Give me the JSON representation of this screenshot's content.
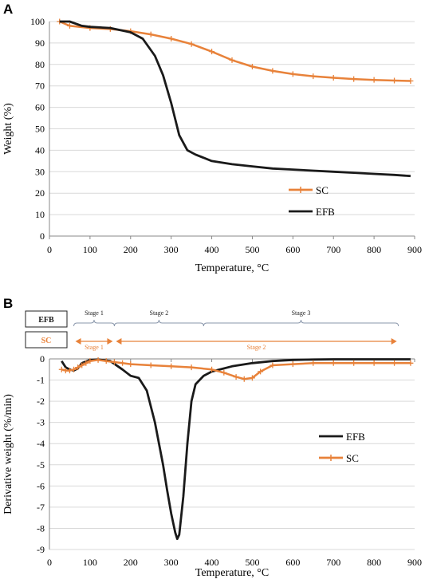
{
  "colors": {
    "SC": "#E8823A",
    "EFB": "#1a1a1a",
    "grid": "#d9d9d9",
    "bracket": "#8a97ab"
  },
  "chart_data": [
    {
      "panel": "A",
      "type": "line",
      "xlabel": "Temperature, °C",
      "ylabel": "Weight (%)",
      "xlim": [
        0,
        900
      ],
      "ylim": [
        0,
        100
      ],
      "xticks": [
        "0",
        "100",
        "200",
        "300",
        "400",
        "500",
        "600",
        "700",
        "800",
        "900"
      ],
      "yticks": [
        "0",
        "10",
        "20",
        "30",
        "40",
        "50",
        "60",
        "70",
        "80",
        "90",
        "100"
      ],
      "grid": "horizontal",
      "legend_position": "center-right",
      "series": [
        {
          "name": "SC",
          "marker": "plus",
          "x": [
            25,
            50,
            100,
            150,
            200,
            250,
            300,
            350,
            400,
            450,
            500,
            550,
            600,
            650,
            700,
            750,
            800,
            850,
            890
          ],
          "y": [
            100,
            98,
            97,
            96.5,
            95.5,
            94,
            92,
            89.5,
            86,
            82,
            79,
            77,
            75.5,
            74.5,
            73.8,
            73.2,
            72.8,
            72.5,
            72.3
          ]
        },
        {
          "name": "EFB",
          "marker": "none",
          "x": [
            25,
            50,
            80,
            100,
            150,
            200,
            230,
            260,
            280,
            300,
            320,
            340,
            360,
            400,
            450,
            500,
            550,
            600,
            650,
            700,
            750,
            800,
            850,
            890
          ],
          "y": [
            100,
            100,
            98,
            97.5,
            97,
            95,
            92,
            84,
            75,
            62,
            47,
            40,
            38,
            35,
            33.5,
            32.5,
            31.5,
            31,
            30.5,
            30,
            29.5,
            29,
            28.5,
            28
          ]
        }
      ]
    },
    {
      "panel": "B",
      "type": "line",
      "xlabel": "Temperature, °C",
      "ylabel": "Derivative weight (%/min)",
      "xlim": [
        0,
        900
      ],
      "ylim": [
        -9,
        0
      ],
      "xticks": [
        "0",
        "100",
        "200",
        "300",
        "400",
        "500",
        "600",
        "700",
        "800",
        "900"
      ],
      "yticks": [
        "0",
        "-1",
        "-2",
        "-3",
        "-4",
        "-5",
        "-6",
        "-7",
        "-8",
        "-9"
      ],
      "grid": "horizontal",
      "legend_position": "center-right",
      "series": [
        {
          "name": "EFB",
          "marker": "none",
          "x": [
            30,
            40,
            50,
            60,
            70,
            80,
            100,
            120,
            150,
            180,
            200,
            220,
            240,
            260,
            280,
            290,
            300,
            310,
            315,
            320,
            330,
            340,
            350,
            360,
            380,
            400,
            450,
            500,
            550,
            600,
            650,
            700,
            750,
            800,
            850,
            890
          ],
          "y": [
            -0.1,
            -0.4,
            -0.5,
            -0.55,
            -0.45,
            -0.2,
            -0.05,
            -0.03,
            -0.1,
            -0.5,
            -0.8,
            -0.9,
            -1.5,
            -3,
            -5,
            -6.2,
            -7.3,
            -8.2,
            -8.5,
            -8.3,
            -6.5,
            -4,
            -2,
            -1.2,
            -0.8,
            -0.6,
            -0.35,
            -0.2,
            -0.1,
            -0.05,
            -0.03,
            -0.02,
            -0.02,
            -0.02,
            -0.02,
            -0.02
          ]
        },
        {
          "name": "SC",
          "marker": "plus",
          "x": [
            30,
            40,
            50,
            60,
            70,
            80,
            90,
            100,
            120,
            140,
            160,
            180,
            200,
            250,
            300,
            350,
            400,
            430,
            460,
            480,
            500,
            520,
            550,
            600,
            650,
            700,
            750,
            800,
            850,
            890
          ],
          "y": [
            -0.5,
            -0.55,
            -0.55,
            -0.5,
            -0.4,
            -0.3,
            -0.2,
            -0.1,
            -0.05,
            -0.1,
            -0.15,
            -0.2,
            -0.25,
            -0.3,
            -0.35,
            -0.4,
            -0.5,
            -0.65,
            -0.85,
            -0.95,
            -0.9,
            -0.6,
            -0.3,
            -0.25,
            -0.2,
            -0.2,
            -0.2,
            -0.2,
            -0.2,
            -0.2
          ]
        }
      ],
      "stages": {
        "EFB": {
          "label": "EFB",
          "ranges": [
            {
              "label": "Stage 1",
              "from": 60,
              "to": 160
            },
            {
              "label": "Stage 2",
              "from": 160,
              "to": 380
            },
            {
              "label": "Stage 3",
              "from": 380,
              "to": 860
            }
          ]
        },
        "SC": {
          "label": "SC",
          "ranges": [
            {
              "label": "Stage 1",
              "from": 60,
              "to": 160
            },
            {
              "label": "Stage 2",
              "from": 160,
              "to": 860
            }
          ]
        }
      }
    }
  ],
  "panel_labels": {
    "a": "A",
    "b": "B"
  }
}
